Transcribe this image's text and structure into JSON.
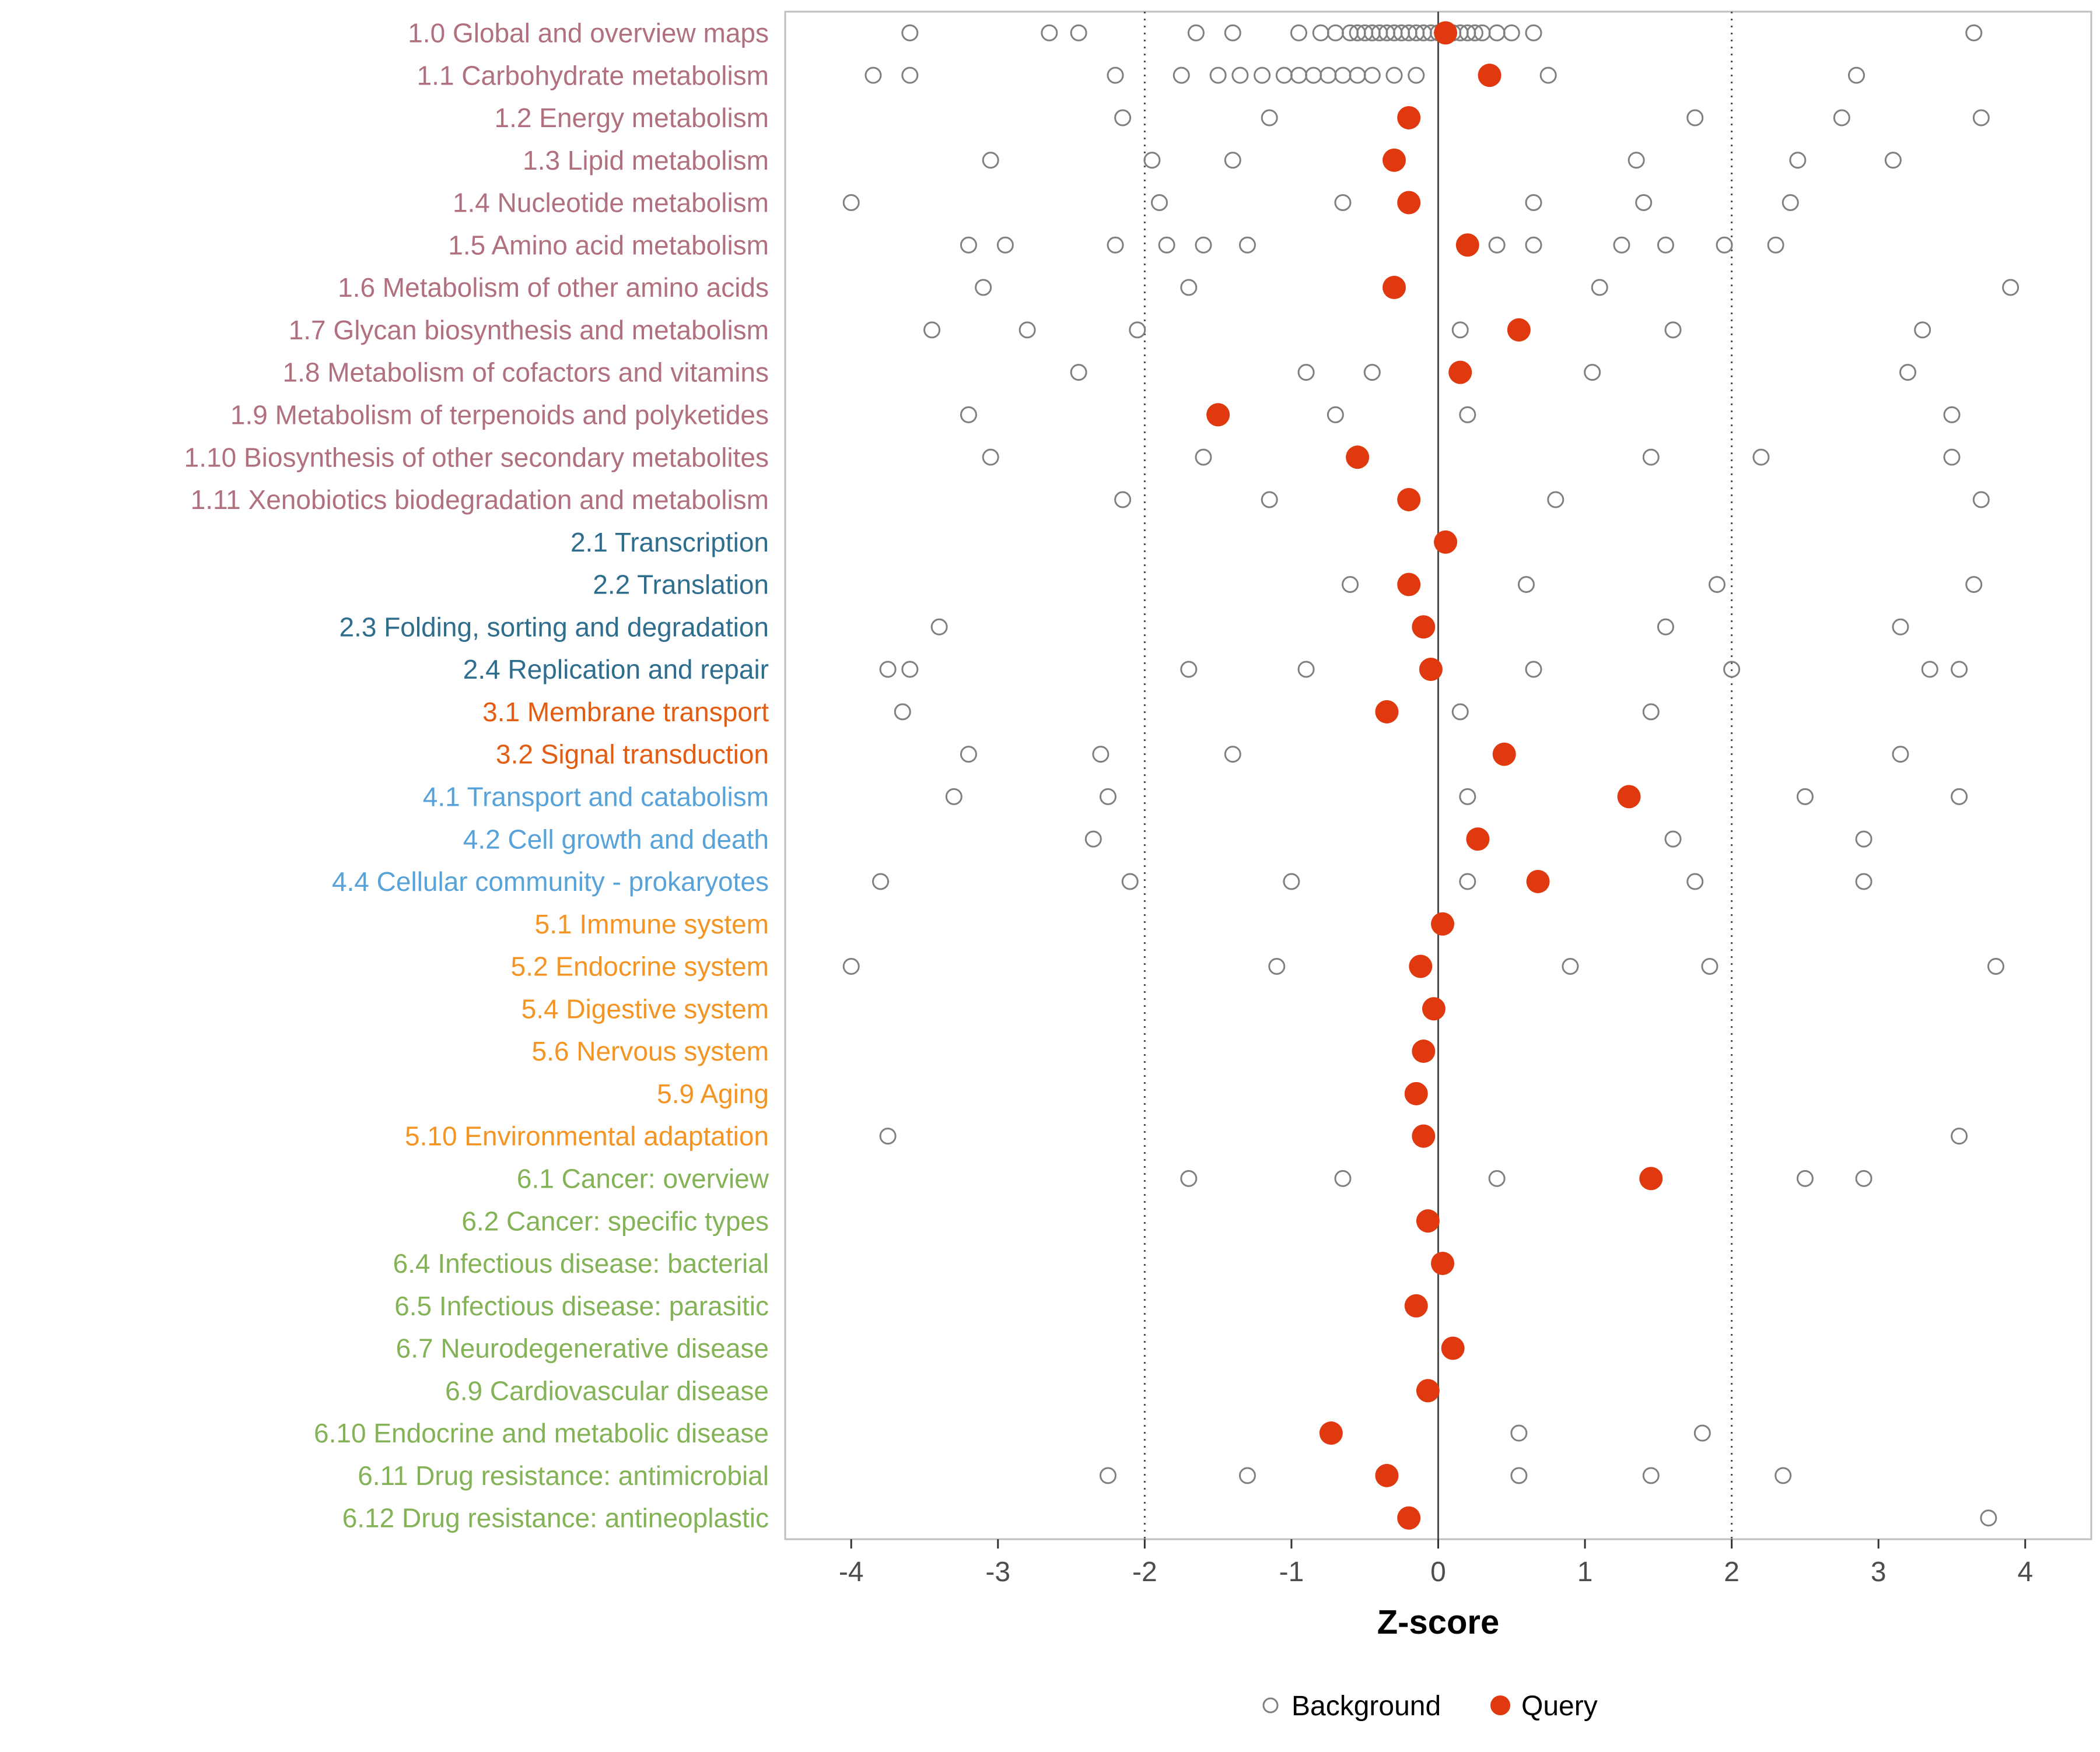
{
  "figure": {
    "xlabel": "Z-score",
    "legend_background_label": "Background",
    "legend_query_label": "Query"
  },
  "chart_data": {
    "type": "scatter",
    "subtype": "horizontal-dot-plot",
    "title": "",
    "xlabel": "Z-score",
    "ylabel": "",
    "xlim": [
      -4.45,
      4.45
    ],
    "x_ticks": [
      -4,
      -3,
      -2,
      -1,
      0,
      1,
      2,
      3,
      4
    ],
    "grid": false,
    "legend_position": "bottom",
    "reference_lines": {
      "solid_x": [
        0
      ],
      "dotted_x": [
        -2,
        2
      ]
    },
    "legend": [
      {
        "label": "Background",
        "marker": "open-circle",
        "color": "#808080"
      },
      {
        "label": "Query",
        "marker": "filled-circle",
        "color": "#e0390f"
      }
    ],
    "colors": {
      "query": "#e0390f",
      "background_stroke": "#808080",
      "axis_text": "#4d4d4d",
      "axis_title": "#000000",
      "panel_border": "#bfbfbf",
      "reference_line": "#4d4d4d",
      "group_colors": {
        "metabolism": "#b0707e",
        "genetic": "#2e6d8e",
        "environmental": "#e45c11",
        "cellular": "#57a2d9",
        "organismal": "#f39423",
        "disease": "#83b257"
      }
    },
    "rows": [
      {
        "label": "1.0 Global and overview maps",
        "group": "metabolism",
        "query": 0.05,
        "background": [
          -3.6,
          -2.65,
          -2.45,
          -1.65,
          -1.4,
          -0.95,
          -0.8,
          -0.7,
          -0.6,
          -0.55,
          -0.5,
          -0.45,
          -0.4,
          -0.35,
          -0.3,
          -0.25,
          -0.2,
          -0.15,
          -0.1,
          -0.05,
          0.0,
          0.1,
          0.15,
          0.2,
          0.25,
          0.3,
          0.4,
          0.5,
          0.65,
          3.65
        ]
      },
      {
        "label": "1.1 Carbohydrate metabolism",
        "group": "metabolism",
        "query": 0.35,
        "background": [
          -3.85,
          -3.6,
          -2.2,
          -1.75,
          -1.5,
          -1.35,
          -1.2,
          -1.05,
          -0.95,
          -0.85,
          -0.75,
          -0.65,
          -0.55,
          -0.45,
          -0.3,
          -0.15,
          0.75,
          2.85
        ]
      },
      {
        "label": "1.2 Energy metabolism",
        "group": "metabolism",
        "query": -0.2,
        "background": [
          -2.15,
          -1.15,
          1.75,
          2.75,
          3.7
        ]
      },
      {
        "label": "1.3 Lipid metabolism",
        "group": "metabolism",
        "query": -0.3,
        "background": [
          -3.05,
          -1.95,
          -1.4,
          1.35,
          2.45,
          3.1
        ]
      },
      {
        "label": "1.4 Nucleotide metabolism",
        "group": "metabolism",
        "query": -0.2,
        "background": [
          -4.0,
          -1.9,
          -0.65,
          0.65,
          1.4,
          2.4
        ]
      },
      {
        "label": "1.5 Amino acid metabolism",
        "group": "metabolism",
        "query": 0.2,
        "background": [
          -3.2,
          -2.95,
          -2.2,
          -1.85,
          -1.6,
          -1.3,
          0.4,
          0.65,
          1.25,
          1.55,
          1.95,
          2.3
        ]
      },
      {
        "label": "1.6 Metabolism of other amino acids",
        "group": "metabolism",
        "query": -0.3,
        "background": [
          -3.1,
          -1.7,
          1.1,
          3.9
        ]
      },
      {
        "label": "1.7 Glycan biosynthesis and metabolism",
        "group": "metabolism",
        "query": 0.55,
        "background": [
          -3.45,
          -2.8,
          -2.05,
          0.15,
          1.6,
          3.3
        ]
      },
      {
        "label": "1.8 Metabolism of cofactors and vitamins",
        "group": "metabolism",
        "query": 0.15,
        "background": [
          -2.45,
          -0.9,
          -0.45,
          1.05,
          3.2
        ]
      },
      {
        "label": "1.9 Metabolism of terpenoids and polyketides",
        "group": "metabolism",
        "query": -1.5,
        "background": [
          -3.2,
          -0.7,
          0.2,
          3.5
        ]
      },
      {
        "label": "1.10 Biosynthesis of other secondary metabolites",
        "group": "metabolism",
        "query": -0.55,
        "background": [
          -3.05,
          -1.6,
          1.45,
          2.2,
          3.5
        ]
      },
      {
        "label": "1.11 Xenobiotics biodegradation and metabolism",
        "group": "metabolism",
        "query": -0.2,
        "background": [
          -2.15,
          -1.15,
          0.8,
          3.7
        ]
      },
      {
        "label": "2.1 Transcription",
        "group": "genetic",
        "query": 0.05,
        "background": []
      },
      {
        "label": "2.2 Translation",
        "group": "genetic",
        "query": -0.2,
        "background": [
          -0.6,
          0.6,
          1.9,
          3.65
        ]
      },
      {
        "label": "2.3 Folding, sorting and degradation",
        "group": "genetic",
        "query": -0.1,
        "background": [
          -3.4,
          1.55,
          3.15
        ]
      },
      {
        "label": "2.4 Replication and repair",
        "group": "genetic",
        "query": -0.05,
        "background": [
          -3.75,
          -3.6,
          -1.7,
          -0.9,
          0.65,
          2.0,
          3.35,
          3.55
        ]
      },
      {
        "label": "3.1 Membrane transport",
        "group": "environmental",
        "query": -0.35,
        "background": [
          -3.65,
          0.15,
          1.45
        ]
      },
      {
        "label": "3.2 Signal transduction",
        "group": "environmental",
        "query": 0.45,
        "background": [
          -3.2,
          -2.3,
          -1.4,
          3.15
        ]
      },
      {
        "label": "4.1 Transport and catabolism",
        "group": "cellular",
        "query": 1.3,
        "background": [
          -3.3,
          -2.25,
          0.2,
          2.5,
          3.55
        ]
      },
      {
        "label": "4.2 Cell growth and death",
        "group": "cellular",
        "query": 0.27,
        "background": [
          -2.35,
          1.6,
          2.9
        ]
      },
      {
        "label": "4.4 Cellular community - prokaryotes",
        "group": "cellular",
        "query": 0.68,
        "background": [
          -3.8,
          -2.1,
          -1.0,
          0.2,
          1.75,
          2.9
        ]
      },
      {
        "label": "5.1 Immune system",
        "group": "organismal",
        "query": 0.03,
        "background": []
      },
      {
        "label": "5.2 Endocrine system",
        "group": "organismal",
        "query": -0.12,
        "background": [
          -4.0,
          -1.1,
          0.9,
          1.85,
          3.8
        ]
      },
      {
        "label": "5.4 Digestive system",
        "group": "organismal",
        "query": -0.03,
        "background": []
      },
      {
        "label": "5.6 Nervous system",
        "group": "organismal",
        "query": -0.1,
        "background": []
      },
      {
        "label": "5.9 Aging",
        "group": "organismal",
        "query": -0.15,
        "background": []
      },
      {
        "label": "5.10 Environmental adaptation",
        "group": "organismal",
        "query": -0.1,
        "background": [
          -3.75,
          3.55
        ]
      },
      {
        "label": "6.1 Cancer: overview",
        "group": "disease",
        "query": 1.45,
        "background": [
          -1.7,
          -0.65,
          0.4,
          2.5,
          2.9
        ]
      },
      {
        "label": "6.2 Cancer: specific types",
        "group": "disease",
        "query": -0.07,
        "background": []
      },
      {
        "label": "6.4 Infectious disease: bacterial",
        "group": "disease",
        "query": 0.03,
        "background": []
      },
      {
        "label": "6.5 Infectious disease: parasitic",
        "group": "disease",
        "query": -0.15,
        "background": []
      },
      {
        "label": "6.7 Neurodegenerative disease",
        "group": "disease",
        "query": 0.1,
        "background": []
      },
      {
        "label": "6.9 Cardiovascular disease",
        "group": "disease",
        "query": -0.07,
        "background": []
      },
      {
        "label": "6.10 Endocrine and metabolic disease",
        "group": "disease",
        "query": -0.73,
        "background": [
          0.55,
          1.8
        ]
      },
      {
        "label": "6.11 Drug resistance: antimicrobial",
        "group": "disease",
        "query": -0.35,
        "background": [
          -2.25,
          -1.3,
          0.55,
          1.45,
          2.35
        ]
      },
      {
        "label": "6.12 Drug resistance: antineoplastic",
        "group": "disease",
        "query": -0.2,
        "background": [
          3.75
        ]
      }
    ]
  }
}
